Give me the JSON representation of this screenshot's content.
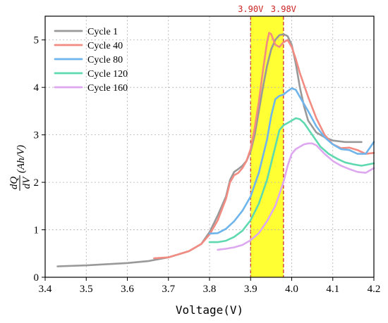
{
  "chart_data": {
    "type": "line",
    "title": "",
    "xlabel": "Voltage(V)",
    "ylabel": {
      "fraction_numerator": "dQ",
      "fraction_denominator": "dV",
      "unit": "(Ah/V)"
    },
    "xlim": [
      3.4,
      4.2
    ],
    "ylim": [
      0,
      5.5
    ],
    "x_ticks": [
      "3.4",
      "3.5",
      "3.6",
      "3.7",
      "3.8",
      "3.9",
      "4.0",
      "4.1",
      "4.2"
    ],
    "y_ticks": [
      "0",
      "1",
      "2",
      "3",
      "4",
      "5"
    ],
    "grid": true,
    "legend_position": "top-left",
    "highlight_band": {
      "x_start": 3.9,
      "x_end": 3.98,
      "fill_color": "#ffff33",
      "border_color": "#cc2222",
      "labels": [
        "3.90V",
        "3.98V"
      ]
    },
    "series": [
      {
        "name": "Cycle 1",
        "color": "#999999",
        "x": [
          3.43,
          3.5,
          3.6,
          3.65,
          3.7,
          3.75,
          3.78,
          3.8,
          3.82,
          3.84,
          3.85,
          3.86,
          3.87,
          3.88,
          3.89,
          3.9,
          3.91,
          3.92,
          3.93,
          3.94,
          3.95,
          3.96,
          3.97,
          3.98,
          3.99,
          4.0,
          4.01,
          4.02,
          4.03,
          4.04,
          4.06,
          4.08,
          4.1,
          4.13,
          4.17
        ],
        "y": [
          0.23,
          0.25,
          0.3,
          0.34,
          0.42,
          0.55,
          0.7,
          0.95,
          1.3,
          1.7,
          2.05,
          2.22,
          2.28,
          2.35,
          2.45,
          2.65,
          3.0,
          3.5,
          4.0,
          4.45,
          4.8,
          5.0,
          5.1,
          5.12,
          5.08,
          4.9,
          4.5,
          4.0,
          3.6,
          3.3,
          3.05,
          2.95,
          2.88,
          2.85,
          2.85
        ]
      },
      {
        "name": "Cycle 40",
        "color": "#f28b82",
        "x": [
          3.665,
          3.7,
          3.75,
          3.78,
          3.8,
          3.82,
          3.84,
          3.85,
          3.86,
          3.87,
          3.88,
          3.89,
          3.9,
          3.91,
          3.92,
          3.93,
          3.94,
          3.945,
          3.95,
          3.96,
          3.97,
          3.98,
          3.99,
          4.0,
          4.01,
          4.02,
          4.04,
          4.06,
          4.08,
          4.1,
          4.12,
          4.14,
          4.16,
          4.18,
          4.2
        ],
        "y": [
          0.4,
          0.42,
          0.55,
          0.7,
          0.9,
          1.2,
          1.65,
          2.0,
          2.15,
          2.2,
          2.3,
          2.45,
          2.7,
          3.15,
          3.7,
          4.35,
          4.95,
          5.15,
          5.12,
          4.9,
          4.85,
          4.95,
          5.0,
          4.85,
          4.6,
          4.3,
          3.8,
          3.35,
          3.0,
          2.8,
          2.72,
          2.73,
          2.68,
          2.6,
          2.62
        ]
      },
      {
        "name": "Cycle 80",
        "color": "#6fb5ec",
        "x": [
          3.8,
          3.82,
          3.84,
          3.86,
          3.88,
          3.9,
          3.92,
          3.94,
          3.95,
          3.96,
          3.97,
          3.98,
          3.99,
          4.0,
          4.01,
          4.02,
          4.04,
          4.06,
          4.08,
          4.1,
          4.12,
          4.14,
          4.16,
          4.18,
          4.2
        ],
        "y": [
          0.92,
          0.93,
          1.02,
          1.18,
          1.4,
          1.7,
          2.2,
          2.9,
          3.4,
          3.75,
          3.82,
          3.85,
          3.92,
          3.98,
          3.95,
          3.8,
          3.5,
          3.18,
          2.95,
          2.8,
          2.7,
          2.68,
          2.6,
          2.6,
          2.85
        ]
      },
      {
        "name": "Cycle 120",
        "color": "#5fd9b0",
        "x": [
          3.8,
          3.82,
          3.84,
          3.86,
          3.88,
          3.9,
          3.92,
          3.94,
          3.96,
          3.97,
          3.98,
          3.99,
          4.0,
          4.01,
          4.02,
          4.03,
          4.05,
          4.07,
          4.09,
          4.11,
          4.13,
          4.15,
          4.17,
          4.2
        ],
        "y": [
          0.74,
          0.74,
          0.77,
          0.85,
          0.98,
          1.2,
          1.55,
          2.05,
          2.75,
          3.1,
          3.2,
          3.25,
          3.3,
          3.35,
          3.33,
          3.25,
          3.0,
          2.75,
          2.6,
          2.5,
          2.42,
          2.38,
          2.35,
          2.4
        ]
      },
      {
        "name": "Cycle 160",
        "color": "#dda8f0",
        "x": [
          3.82,
          3.84,
          3.86,
          3.88,
          3.9,
          3.92,
          3.94,
          3.96,
          3.98,
          3.99,
          4.0,
          4.01,
          4.02,
          4.03,
          4.04,
          4.05,
          4.06,
          4.08,
          4.1,
          4.12,
          4.14,
          4.16,
          4.18,
          4.2
        ],
        "y": [
          0.58,
          0.6,
          0.63,
          0.68,
          0.78,
          0.93,
          1.18,
          1.5,
          2.0,
          2.35,
          2.6,
          2.7,
          2.75,
          2.8,
          2.82,
          2.82,
          2.78,
          2.6,
          2.45,
          2.35,
          2.28,
          2.22,
          2.2,
          2.3
        ]
      }
    ]
  }
}
